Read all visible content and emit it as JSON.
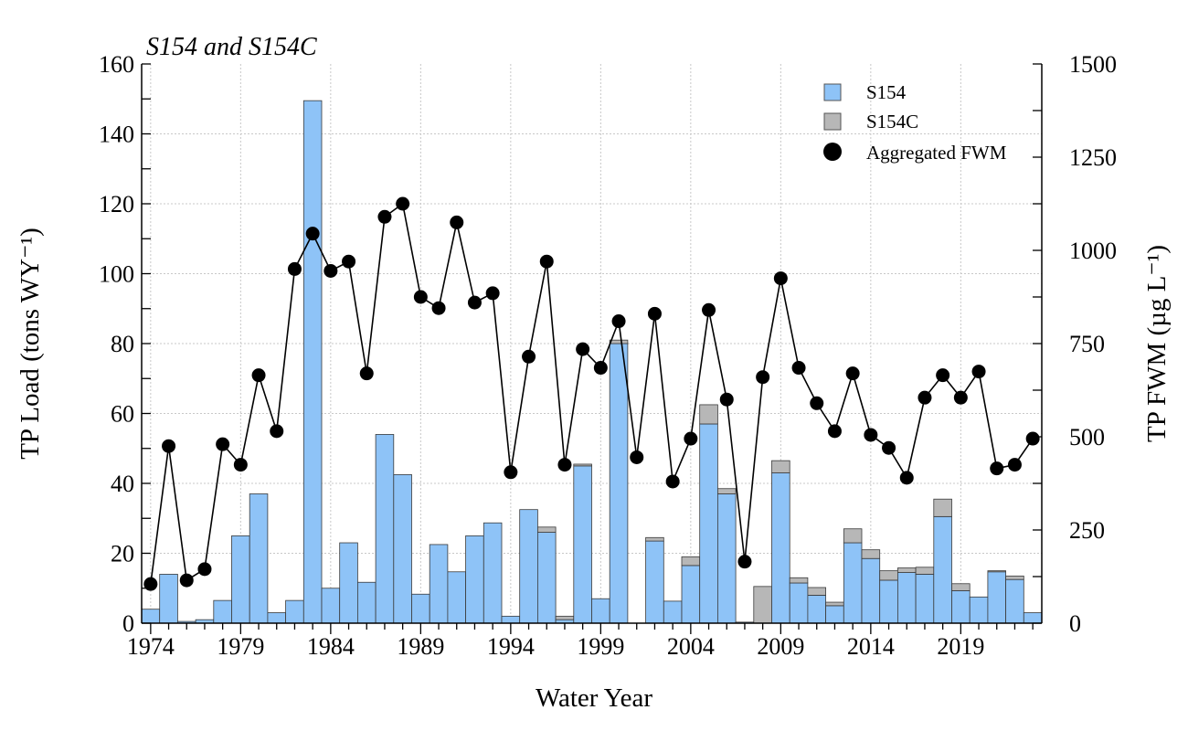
{
  "chart_data": {
    "type": "bar",
    "title": "S154 and S154C",
    "xlabel": "Water Year",
    "ylabel_left": "TP Load (tons WY⁻¹)",
    "ylabel_right": "TP FWM (µg L⁻¹)",
    "x": [
      1974,
      1975,
      1976,
      1977,
      1978,
      1979,
      1980,
      1981,
      1982,
      1983,
      1984,
      1985,
      1986,
      1987,
      1988,
      1989,
      1990,
      1991,
      1992,
      1993,
      1994,
      1995,
      1996,
      1997,
      1998,
      1999,
      2000,
      2001,
      2002,
      2003,
      2004,
      2005,
      2006,
      2007,
      2008,
      2009,
      2010,
      2011,
      2012,
      2013,
      2014,
      2015,
      2016,
      2017,
      2018,
      2019,
      2020,
      2021,
      2022,
      2023
    ],
    "x_ticks": [
      "1974",
      "1979",
      "1984",
      "1989",
      "1994",
      "1999",
      "2004",
      "2009",
      "2014",
      "2019"
    ],
    "xlim": [
      1973.5,
      2023.5
    ],
    "ylim_left": [
      0,
      160
    ],
    "y_ticks_left": [
      "0",
      "20",
      "40",
      "60",
      "80",
      "100",
      "120",
      "140",
      "160"
    ],
    "ylim_right": [
      0,
      1500
    ],
    "y_ticks_right": [
      "0",
      "250",
      "500",
      "750",
      "1000",
      "1250",
      "1500"
    ],
    "grid": true,
    "legend_position": "top-right",
    "series": [
      {
        "name": "S154",
        "kind": "bar",
        "color": "#8ec3f7",
        "values": [
          4,
          14,
          0.5,
          1,
          6.5,
          25,
          37,
          3,
          6.5,
          149.5,
          10,
          23,
          11.7,
          54,
          42.5,
          8.3,
          22.5,
          14.7,
          25,
          28.7,
          2,
          32.5,
          26,
          1,
          45,
          7,
          80,
          0,
          23.5,
          6.3,
          16.5,
          57,
          37,
          0.3,
          0,
          43,
          11.5,
          8,
          5,
          23,
          18.5,
          12.3,
          14.5,
          14,
          30.5,
          9.3,
          7.5,
          14.7,
          12.5,
          3
        ]
      },
      {
        "name": "S154C",
        "kind": "bar",
        "color": "#b7b7b7",
        "values": [
          0,
          0,
          0,
          0,
          0,
          0,
          0,
          0,
          0,
          0,
          0,
          0,
          0,
          0,
          0,
          0,
          0,
          0,
          0,
          0,
          0,
          0,
          1.5,
          1,
          0.5,
          0,
          1,
          0,
          1,
          0,
          2.5,
          5.5,
          1.5,
          0,
          10.5,
          3.5,
          1.5,
          2.2,
          1,
          4,
          2.5,
          2.7,
          1.3,
          2,
          5,
          2,
          0,
          0.3,
          1,
          0
        ]
      },
      {
        "name": "Aggregated FWM",
        "kind": "line",
        "color": "#000000",
        "values": [
          105,
          475,
          115,
          145,
          480,
          425,
          665,
          515,
          950,
          1045,
          945,
          970,
          670,
          1090,
          1125,
          875,
          845,
          1075,
          860,
          885,
          405,
          715,
          970,
          425,
          735,
          685,
          810,
          445,
          830,
          380,
          495,
          840,
          600,
          165,
          660,
          925,
          685,
          590,
          515,
          670,
          505,
          470,
          390,
          605,
          665,
          605,
          675,
          415,
          425,
          495
        ]
      }
    ]
  }
}
